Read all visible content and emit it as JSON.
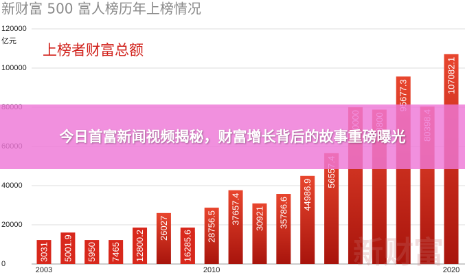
{
  "chart_data": {
    "type": "bar",
    "title": "新财富 500 富人榜历年上榜情况",
    "y_unit": "亿元",
    "subtitle": "上榜者财富总额",
    "banner": "今日首富新闻视频揭秘，财富增长背后的故事重磅曝光",
    "watermark": "新财富",
    "categories": [
      "2003",
      null,
      null,
      null,
      null,
      null,
      null,
      "2010",
      null,
      null,
      null,
      null,
      null,
      null,
      null,
      null,
      null,
      "2020"
    ],
    "values": [
      3031,
      5001.9,
      5950,
      7465,
      12800.2,
      26027,
      16285.6,
      28756.5,
      37657.4,
      30921,
      35786.6,
      44986.9,
      56557.4,
      80000,
      78800,
      95677.3,
      80398.4,
      107082.1
    ],
    "color": "#d8281c",
    "ylim": [
      0,
      120000
    ],
    "yticks": [
      0,
      20000,
      40000,
      60000,
      80000,
      100000,
      120000
    ],
    "grid": true
  }
}
